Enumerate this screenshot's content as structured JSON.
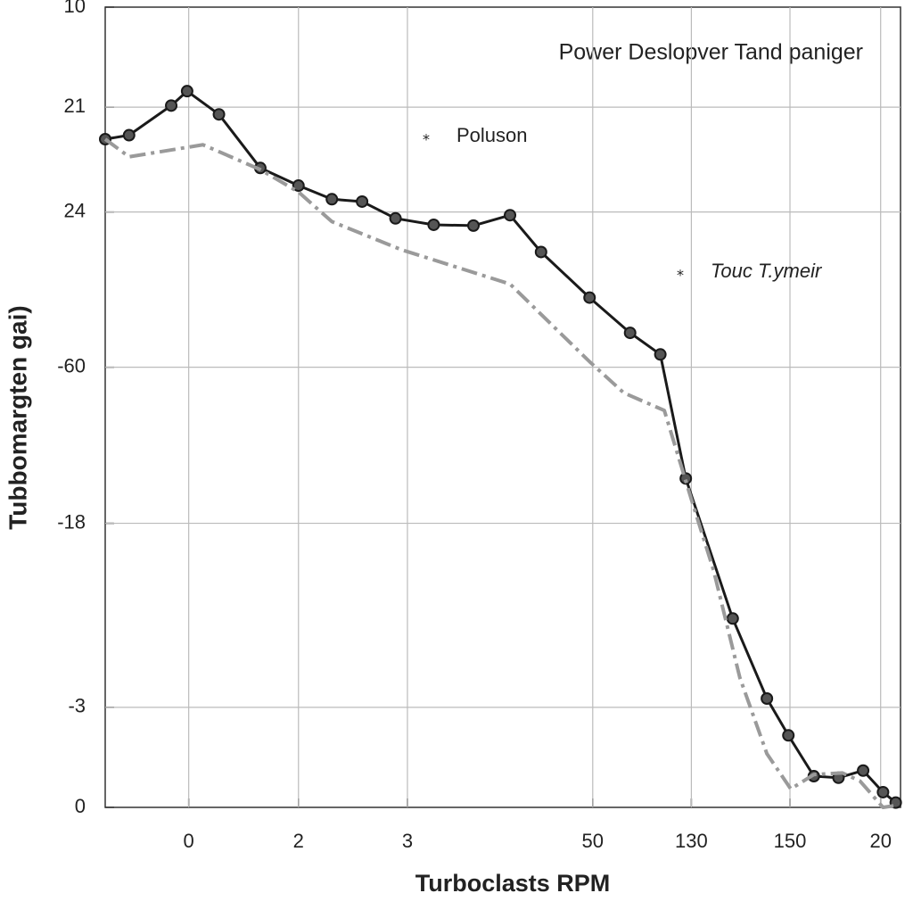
{
  "chart_data": {
    "type": "line",
    "title": "Power Deslopver Tand paniger",
    "x_label": "Turboclasts RPM",
    "y_label": "Tubbomargten gai)",
    "xlim": [
      0,
      100
    ],
    "ylim": [
      0,
      100
    ],
    "xticks": [
      {
        "value": 10.5,
        "label": "0"
      },
      {
        "value": 24.3,
        "label": "2"
      },
      {
        "value": 38,
        "label": "3"
      },
      {
        "value": 61.3,
        "label": "50"
      },
      {
        "value": 73.7,
        "label": "130"
      },
      {
        "value": 86.1,
        "label": "150"
      },
      {
        "value": 97.5,
        "label": "20"
      }
    ],
    "yticks": [
      {
        "value": 100,
        "label": "10"
      },
      {
        "value": 87.5,
        "label": "21"
      },
      {
        "value": 74.4,
        "label": "24"
      },
      {
        "value": 55,
        "label": "-60"
      },
      {
        "value": 35.5,
        "label": "-18"
      },
      {
        "value": 12.5,
        "label": "-3"
      },
      0
    ],
    "grid": true,
    "series": [
      {
        "name": "Poluson",
        "color": "#1a1a1a",
        "style": "solid",
        "markers": true,
        "x": [
          0,
          3.0,
          8.3,
          10.3,
          14.3,
          19.5,
          24.3,
          28.5,
          32.3,
          36.5,
          41.3,
          46.3,
          50.9,
          54.8,
          60.9,
          66.0,
          69.8,
          73.0,
          78.9,
          83.2,
          85.9,
          89.1,
          92.2,
          95.3,
          97.8,
          99.4
        ],
        "values": [
          83.5,
          84.0,
          87.7,
          89.5,
          86.6,
          79.9,
          77.7,
          76.0,
          75.7,
          73.6,
          72.8,
          72.7,
          74.0,
          69.4,
          63.7,
          59.3,
          56.6,
          41.1,
          23.6,
          13.6,
          9.0,
          3.9,
          3.7,
          4.6,
          1.9,
          0.6
        ]
      },
      {
        "name": "Touc T.ymeir",
        "color": "#9a9a9a",
        "style": "dashdot",
        "markers": false,
        "x": [
          0,
          3.0,
          12.3,
          19.5,
          24.3,
          28.5,
          37.2,
          50.9,
          60.9,
          65.2,
          70.3,
          73.7,
          76.5,
          79.8,
          83.2,
          86.2,
          89.1,
          92.7,
          94.9,
          97.8,
          99.8
        ],
        "values": [
          83.5,
          81.3,
          82.8,
          79.7,
          76.9,
          73.2,
          69.7,
          65.4,
          55.7,
          51.8,
          49.6,
          38.5,
          29.6,
          16.2,
          6.7,
          2.3,
          4.1,
          4.3,
          3.3,
          0,
          0.3
        ]
      }
    ]
  }
}
